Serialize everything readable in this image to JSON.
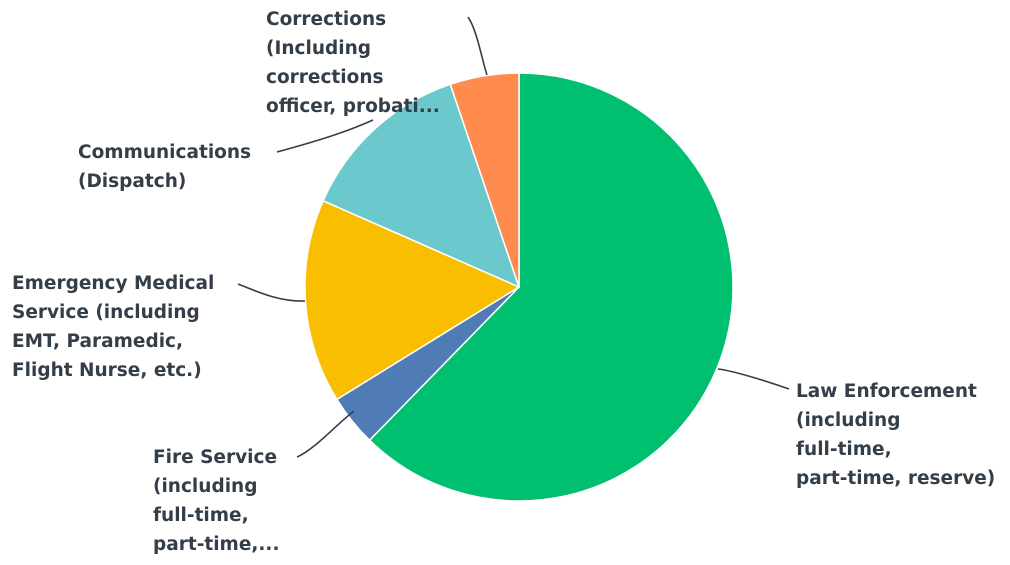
{
  "chart_data": {
    "type": "pie",
    "title": "",
    "slices": [
      {
        "label_lines": [
          "Law Enforcement",
          "(including",
          "full-time,",
          "part-time, reserve)"
        ],
        "value": 62.3,
        "color": "#00bf6f"
      },
      {
        "label_lines": [
          "Fire Service",
          "(including",
          "full-time,",
          "part-time,..."
        ],
        "value": 3.9,
        "color": "#507cb6"
      },
      {
        "label_lines": [
          "Emergency Medical",
          "Service (including",
          "EMT, Paramedic,",
          "Flight Nurse, etc.)"
        ],
        "value": 15.4,
        "color": "#f9be00"
      },
      {
        "label_lines": [
          "Communications",
          "(Dispatch)"
        ],
        "value": 13.2,
        "color": "#6bc8cd"
      },
      {
        "label_lines": [
          "Corrections",
          "(Including",
          "corrections",
          "officer, probati..."
        ],
        "value": 5.2,
        "color": "#ff8b4f"
      }
    ],
    "start_angle": "12 o'clock",
    "direction": "clockwise",
    "legend": "none (direct labels with leader lines)"
  }
}
